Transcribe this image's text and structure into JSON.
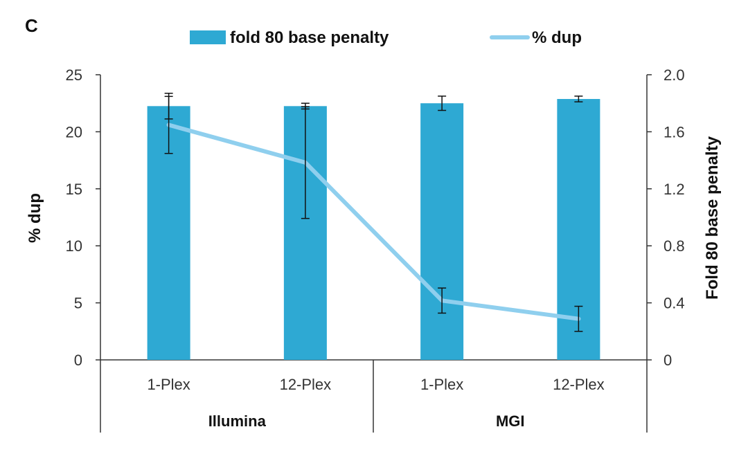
{
  "panel_label": "C",
  "colors": {
    "bar": "#2ea9d3",
    "line": "#8fcfee",
    "axis": "#333333",
    "error": "#111111"
  },
  "chart_data": {
    "type": "bar+line",
    "groups": [
      {
        "label": "Illumina",
        "categories": [
          "1-Plex",
          "12-Plex"
        ]
      },
      {
        "label": "MGI",
        "categories": [
          "1-Plex",
          "12-Plex"
        ]
      }
    ],
    "categories": [
      "1-Plex",
      "12-Plex",
      "1-Plex",
      "12-Plex"
    ],
    "series": [
      {
        "name": "fold 80 base penalty",
        "type": "bar",
        "axis": "right",
        "values": [
          1.78,
          1.78,
          1.8,
          1.83
        ],
        "error": [
          0.09,
          0.02,
          0.05,
          0.02
        ]
      },
      {
        "name": "% dup",
        "type": "line",
        "axis": "left",
        "values": [
          20.6,
          17.3,
          5.2,
          3.6
        ],
        "error": [
          2.5,
          4.9,
          1.1,
          1.1
        ]
      }
    ],
    "y_left": {
      "label": "% dup",
      "min": 0,
      "max": 25,
      "ticks": [
        "0",
        "5",
        "10",
        "15",
        "20",
        "25"
      ]
    },
    "y_right": {
      "label": "Fold 80 base penalty",
      "min": 0,
      "max": 2.0,
      "ticks": [
        "0",
        "0.4",
        "0.8",
        "1.2",
        "1.6",
        "2.0"
      ]
    },
    "legend": {
      "position": "top",
      "items": [
        "fold 80 base penalty",
        "% dup"
      ]
    },
    "grid": false
  }
}
